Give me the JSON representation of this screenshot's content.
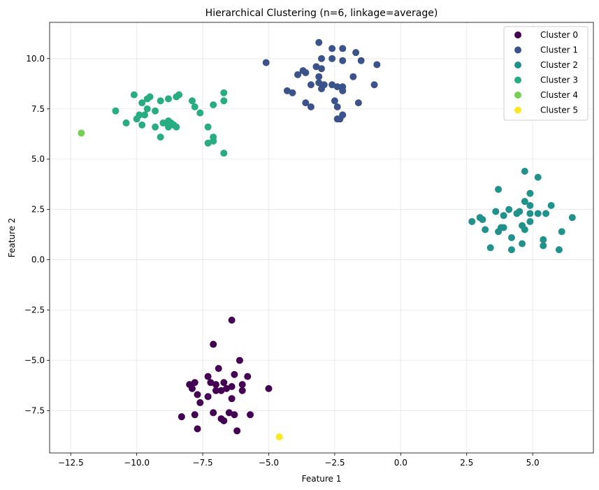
{
  "chart_data": {
    "type": "scatter",
    "title": "Hierarchical Clustering (n=6, linkage=average)",
    "xlabel": "Feature 1",
    "ylabel": "Feature 2",
    "xlim": [
      -13.3,
      7.3
    ],
    "ylim": [
      -9.6,
      11.8
    ],
    "xticks": [
      -12.5,
      -10.0,
      -7.5,
      -5.0,
      -2.5,
      0.0,
      2.5,
      5.0
    ],
    "xtick_labels": [
      "−12.5",
      "−10.0",
      "−7.5",
      "−5.0",
      "−2.5",
      "0.0",
      "2.5",
      "5.0"
    ],
    "yticks": [
      -7.5,
      -5.0,
      -2.5,
      0.0,
      2.5,
      5.0,
      7.5,
      10.0
    ],
    "ytick_labels": [
      "−7.5",
      "−5.0",
      "−2.5",
      "0.0",
      "2.5",
      "5.0",
      "7.5",
      "10.0"
    ],
    "grid": true,
    "legend_position": "top-right",
    "series": [
      {
        "name": "Cluster 0",
        "color": "#440154",
        "points": [
          [
            -6.4,
            -3.0
          ],
          [
            -7.1,
            -4.2
          ],
          [
            -6.1,
            -5.0
          ],
          [
            -6.9,
            -5.4
          ],
          [
            -5.0,
            -6.4
          ],
          [
            -6.3,
            -5.7
          ],
          [
            -5.8,
            -5.8
          ],
          [
            -7.3,
            -5.8
          ],
          [
            -6.7,
            -6.1
          ],
          [
            -7.2,
            -6.1
          ],
          [
            -7.0,
            -6.2
          ],
          [
            -6.0,
            -6.2
          ],
          [
            -8.0,
            -6.2
          ],
          [
            -7.8,
            -6.1
          ],
          [
            -6.4,
            -6.3
          ],
          [
            -7.9,
            -6.4
          ],
          [
            -6.8,
            -6.5
          ],
          [
            -7.0,
            -6.5
          ],
          [
            -6.6,
            -6.4
          ],
          [
            -6.0,
            -6.5
          ],
          [
            -7.7,
            -6.7
          ],
          [
            -7.3,
            -6.8
          ],
          [
            -6.4,
            -6.9
          ],
          [
            -7.6,
            -7.1
          ],
          [
            -6.5,
            -7.6
          ],
          [
            -7.1,
            -7.6
          ],
          [
            -5.7,
            -7.7
          ],
          [
            -7.8,
            -7.7
          ],
          [
            -8.3,
            -7.8
          ],
          [
            -6.3,
            -7.7
          ],
          [
            -6.8,
            -7.9
          ],
          [
            -6.7,
            -8.0
          ],
          [
            -7.7,
            -8.4
          ],
          [
            -6.2,
            -8.5
          ]
        ]
      },
      {
        "name": "Cluster 1",
        "color": "#3b528b",
        "points": [
          [
            -3.1,
            10.8
          ],
          [
            -2.6,
            10.5
          ],
          [
            -2.2,
            10.5
          ],
          [
            -1.7,
            10.3
          ],
          [
            -3.0,
            10.0
          ],
          [
            -2.6,
            10.0
          ],
          [
            -2.2,
            9.9
          ],
          [
            -1.5,
            9.9
          ],
          [
            -5.1,
            9.8
          ],
          [
            -0.9,
            9.7
          ],
          [
            -3.2,
            9.6
          ],
          [
            -3.0,
            9.5
          ],
          [
            -3.7,
            9.4
          ],
          [
            -3.9,
            9.2
          ],
          [
            -3.6,
            9.3
          ],
          [
            -3.1,
            9.1
          ],
          [
            -1.8,
            9.1
          ],
          [
            -3.1,
            8.8
          ],
          [
            -1.0,
            8.7
          ],
          [
            -3.4,
            8.7
          ],
          [
            -2.9,
            8.7
          ],
          [
            -2.6,
            8.7
          ],
          [
            -2.4,
            8.6
          ],
          [
            -2.2,
            8.6
          ],
          [
            -3.0,
            8.5
          ],
          [
            -2.2,
            8.4
          ],
          [
            -4.3,
            8.4
          ],
          [
            -4.1,
            8.3
          ],
          [
            -2.5,
            7.9
          ],
          [
            -3.6,
            7.8
          ],
          [
            -1.6,
            7.8
          ],
          [
            -2.4,
            7.6
          ],
          [
            -3.4,
            7.6
          ],
          [
            -2.2,
            7.2
          ],
          [
            -2.4,
            7.0
          ],
          [
            -2.3,
            7.0
          ]
        ]
      },
      {
        "name": "Cluster 2",
        "color": "#21918c",
        "points": [
          [
            4.7,
            4.4
          ],
          [
            5.2,
            4.1
          ],
          [
            3.7,
            3.5
          ],
          [
            4.9,
            3.3
          ],
          [
            4.7,
            2.9
          ],
          [
            4.9,
            2.7
          ],
          [
            5.7,
            2.7
          ],
          [
            3.6,
            2.4
          ],
          [
            4.1,
            2.5
          ],
          [
            4.5,
            2.4
          ],
          [
            4.4,
            2.3
          ],
          [
            4.9,
            2.3
          ],
          [
            5.2,
            2.3
          ],
          [
            5.5,
            2.3
          ],
          [
            3.9,
            2.2
          ],
          [
            3.0,
            2.1
          ],
          [
            6.5,
            2.1
          ],
          [
            3.1,
            2.0
          ],
          [
            2.7,
            1.9
          ],
          [
            4.9,
            1.9
          ],
          [
            4.6,
            1.7
          ],
          [
            3.8,
            1.6
          ],
          [
            3.9,
            1.6
          ],
          [
            3.2,
            1.5
          ],
          [
            4.7,
            1.5
          ],
          [
            6.1,
            1.4
          ],
          [
            3.7,
            1.4
          ],
          [
            4.2,
            1.1
          ],
          [
            5.4,
            1.0
          ],
          [
            4.6,
            0.8
          ],
          [
            5.4,
            0.7
          ],
          [
            3.4,
            0.6
          ],
          [
            4.2,
            0.5
          ],
          [
            6.0,
            0.5
          ]
        ]
      },
      {
        "name": "Cluster 3",
        "color": "#27ad81",
        "points": [
          [
            -10.1,
            8.2
          ],
          [
            -8.4,
            8.2
          ],
          [
            -9.5,
            8.1
          ],
          [
            -9.6,
            8.0
          ],
          [
            -8.5,
            8.1
          ],
          [
            -8.8,
            8.0
          ],
          [
            -9.1,
            7.9
          ],
          [
            -6.7,
            8.3
          ],
          [
            -7.9,
            7.9
          ],
          [
            -6.7,
            7.9
          ],
          [
            -9.8,
            7.8
          ],
          [
            -7.8,
            7.6
          ],
          [
            -7.1,
            7.7
          ],
          [
            -10.8,
            7.4
          ],
          [
            -9.3,
            7.4
          ],
          [
            -9.6,
            7.5
          ],
          [
            -7.6,
            7.3
          ],
          [
            -9.7,
            7.2
          ],
          [
            -9.9,
            7.2
          ],
          [
            -10.0,
            7.0
          ],
          [
            -8.8,
            6.9
          ],
          [
            -9.0,
            6.8
          ],
          [
            -10.4,
            6.8
          ],
          [
            -8.7,
            6.8
          ],
          [
            -9.8,
            6.7
          ],
          [
            -8.6,
            6.7
          ],
          [
            -9.3,
            6.6
          ],
          [
            -8.8,
            6.6
          ],
          [
            -8.5,
            6.6
          ],
          [
            -7.3,
            6.6
          ],
          [
            -9.1,
            6.1
          ],
          [
            -7.1,
            6.1
          ],
          [
            -7.1,
            5.9
          ],
          [
            -7.3,
            5.8
          ],
          [
            -6.7,
            5.3
          ]
        ]
      },
      {
        "name": "Cluster 4",
        "color": "#75d054",
        "points": [
          [
            -12.1,
            6.3
          ]
        ]
      },
      {
        "name": "Cluster 5",
        "color": "#fde725",
        "points": [
          [
            -4.6,
            -8.8
          ]
        ]
      }
    ]
  }
}
